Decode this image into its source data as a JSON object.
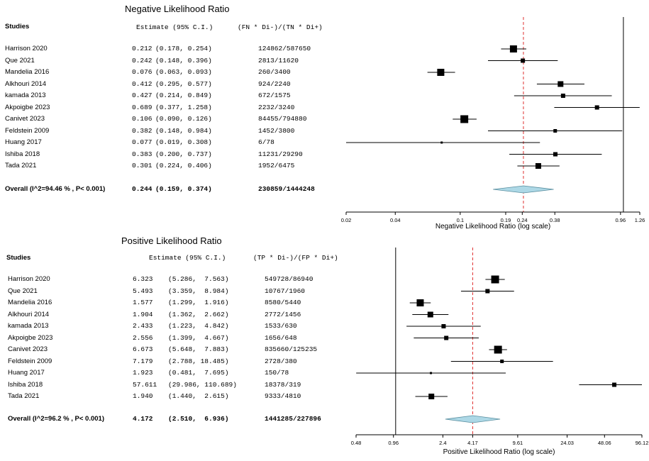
{
  "chart_data": [
    {
      "type": "forest",
      "title": "Negative Likelihood Ratio",
      "xlabel": "Negative Likelihood Ratio (log scale)",
      "x_scale": "log",
      "xlim": [
        0.02,
        1.26
      ],
      "x_ticks": [
        0.02,
        0.04,
        0.1,
        0.19,
        0.24,
        0.38,
        0.96,
        1.26
      ],
      "x_tick_labels": [
        "0.02",
        "0.04",
        "0.1",
        "0.19",
        "0.24",
        "0.38",
        "0.96",
        "1.26"
      ],
      "reference_line": 1,
      "pooled_line": 0.244,
      "headers": {
        "studies": "Studies",
        "estimate": "Estimate (95% C.I.)",
        "counts": "(FN * Di-)/(TN * Di+)"
      },
      "rows": [
        {
          "study": "Harrison 2020",
          "est": 0.212,
          "lo": 0.178,
          "hi": 0.254,
          "est_text": "0.212",
          "ci_text": "(0.178, 0.254)",
          "counts": "124862/587650",
          "weight": 10
        },
        {
          "study": "Que 2021",
          "est": 0.242,
          "lo": 0.148,
          "hi": 0.396,
          "est_text": "0.242",
          "ci_text": "(0.148, 0.396)",
          "counts": "2813/11620",
          "weight": 6
        },
        {
          "study": "Mandelia 2016",
          "est": 0.076,
          "lo": 0.063,
          "hi": 0.093,
          "est_text": "0.076",
          "ci_text": "(0.063, 0.093)",
          "counts": "260/3400",
          "weight": 10
        },
        {
          "study": "Alkhouri 2014",
          "est": 0.412,
          "lo": 0.295,
          "hi": 0.577,
          "est_text": "0.412",
          "ci_text": "(0.295, 0.577)",
          "counts": "924/2240",
          "weight": 8
        },
        {
          "study": "kamada 2013",
          "est": 0.427,
          "lo": 0.214,
          "hi": 0.849,
          "est_text": "0.427",
          "ci_text": "(0.214, 0.849)",
          "counts": "672/1575",
          "weight": 6
        },
        {
          "study": "Akpoigbe 2023",
          "est": 0.689,
          "lo": 0.377,
          "hi": 1.258,
          "est_text": "0.689",
          "ci_text": "(0.377, 1.258)",
          "counts": "2232/3240",
          "weight": 6
        },
        {
          "study": "Canivet  2023",
          "est": 0.106,
          "lo": 0.09,
          "hi": 0.126,
          "est_text": "0.106",
          "ci_text": "(0.090, 0.126)",
          "counts": "84455/794880",
          "weight": 11
        },
        {
          "study": "Feldstein 2009",
          "est": 0.382,
          "lo": 0.148,
          "hi": 0.984,
          "est_text": "0.382",
          "ci_text": "(0.148, 0.984)",
          "counts": "1452/3800",
          "weight": 5
        },
        {
          "study": "Huang 2017",
          "est": 0.077,
          "lo": 0.019,
          "hi": 0.308,
          "est_text": "0.077",
          "ci_text": "(0.019, 0.308)",
          "counts": "6/78",
          "weight": 3
        },
        {
          "study": "Ishiba 2018",
          "est": 0.383,
          "lo": 0.2,
          "hi": 0.737,
          "est_text": "0.383",
          "ci_text": "(0.200, 0.737)",
          "counts": "11231/29290",
          "weight": 6
        },
        {
          "study": "Tada 2021",
          "est": 0.301,
          "lo": 0.224,
          "hi": 0.406,
          "est_text": "0.301",
          "ci_text": "(0.224, 0.406)",
          "counts": "1952/6475",
          "weight": 8
        }
      ],
      "overall": {
        "label": "Overall (I^2=94.46 % , P< 0.001)",
        "est": 0.244,
        "lo": 0.159,
        "hi": 0.374,
        "est_text": "0.244",
        "ci_text": "(0.159, 0.374)",
        "counts": "230859/1444248"
      },
      "colors": {
        "diamond": "#add8e6",
        "pooled_line": "#e03030",
        "marker": "#000000"
      }
    },
    {
      "type": "forest",
      "title": "Positive Likelihood Ratio",
      "xlabel": "Positive Likelihood Ratio (log scale)",
      "x_scale": "log",
      "xlim": [
        0.48,
        96.12
      ],
      "x_ticks": [
        0.48,
        0.96,
        2.4,
        4.17,
        9.61,
        24.03,
        48.06,
        96.12
      ],
      "x_tick_labels": [
        "0.48",
        "0.96",
        "2.4",
        "4.17",
        "9.61",
        "24.03",
        "48.06",
        "96.12"
      ],
      "reference_line": 1,
      "pooled_line": 4.172,
      "headers": {
        "studies": "Studies",
        "estimate": "Estimate (95% C.I.)",
        "counts": "(TP * Di-)/(FP * Di+)"
      },
      "rows": [
        {
          "study": "Harrison 2020",
          "est": 6.323,
          "lo": 5.286,
          "hi": 7.563,
          "est_text": "6.323",
          "ci_text": "(5.286,  7.563)",
          "counts": "549728/86940",
          "weight": 11
        },
        {
          "study": "Que 2021",
          "est": 5.493,
          "lo": 3.359,
          "hi": 8.984,
          "est_text": "5.493",
          "ci_text": "(3.359,  8.984)",
          "counts": "10767/1960",
          "weight": 6
        },
        {
          "study": "Mandelia 2016",
          "est": 1.577,
          "lo": 1.299,
          "hi": 1.916,
          "est_text": "1.577",
          "ci_text": "(1.299,  1.916)",
          "counts": "8580/5440",
          "weight": 10
        },
        {
          "study": "Alkhouri 2014",
          "est": 1.904,
          "lo": 1.362,
          "hi": 2.662,
          "est_text": "1.904",
          "ci_text": "(1.362,  2.662)",
          "counts": "2772/1456",
          "weight": 8
        },
        {
          "study": "kamada 2013",
          "est": 2.433,
          "lo": 1.223,
          "hi": 4.842,
          "est_text": "2.433",
          "ci_text": "(1.223,  4.842)",
          "counts": "1533/630",
          "weight": 6
        },
        {
          "study": "Akpoigbe 2023",
          "est": 2.556,
          "lo": 1.399,
          "hi": 4.667,
          "est_text": "2.556",
          "ci_text": "(1.399,  4.667)",
          "counts": "1656/648",
          "weight": 6
        },
        {
          "study": "Canivet  2023",
          "est": 6.673,
          "lo": 5.648,
          "hi": 7.883,
          "est_text": "6.673",
          "ci_text": "(5.648,  7.883)",
          "counts": "835660/125235",
          "weight": 11
        },
        {
          "study": "Feldstein 2009",
          "est": 7.179,
          "lo": 2.788,
          "hi": 18.485,
          "est_text": "7.179",
          "ci_text": "(2.788, 18.485)",
          "counts": "2728/380",
          "weight": 5
        },
        {
          "study": "Huang 2017",
          "est": 1.923,
          "lo": 0.481,
          "hi": 7.695,
          "est_text": "1.923",
          "ci_text": "(0.481,  7.695)",
          "counts": "150/78",
          "weight": 3
        },
        {
          "study": "Ishiba 2018",
          "est": 57.611,
          "lo": 29.986,
          "hi": 110.689,
          "est_text": "57.611",
          "ci_text": "(29.986, 110.689)",
          "counts": "18378/319",
          "weight": 6
        },
        {
          "study": "Tada 2021",
          "est": 1.94,
          "lo": 1.44,
          "hi": 2.615,
          "est_text": "1.940",
          "ci_text": "(1.440,  2.615)",
          "counts": "9333/4810",
          "weight": 8
        }
      ],
      "overall": {
        "label": "Overall (I^2=96.2 % , P< 0.001)",
        "est": 4.172,
        "lo": 2.51,
        "hi": 6.936,
        "est_text": "4.172",
        "ci_text": "(2.510,  6.936)",
        "counts": "1441285/227896"
      },
      "colors": {
        "diamond": "#add8e6",
        "pooled_line": "#e03030",
        "marker": "#000000"
      }
    }
  ]
}
